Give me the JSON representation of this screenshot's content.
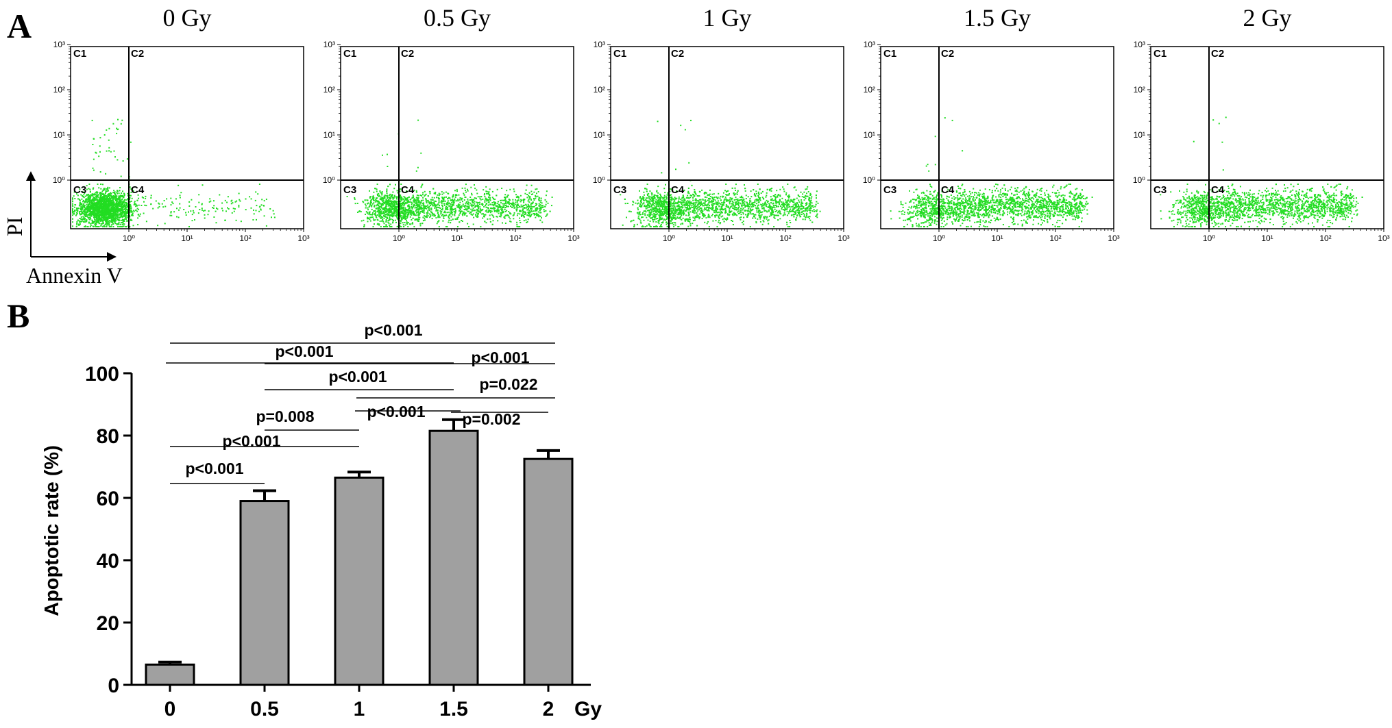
{
  "panel_a": {
    "label": "A",
    "y_marker": "PI",
    "x_marker": "Annexin V",
    "quadrant_labels": [
      "C1",
      "C2",
      "C3",
      "C4"
    ],
    "x_ticks": [
      "10⁰",
      "10¹",
      "10²",
      "10³"
    ],
    "y_ticks": [
      "10⁰",
      "10¹",
      "10²",
      "10³"
    ],
    "plots": [
      {
        "title": "0 Gy",
        "dose": 0
      },
      {
        "title": "0.5 Gy",
        "dose": 0.5
      },
      {
        "title": "1 Gy",
        "dose": 1
      },
      {
        "title": "1.5 Gy",
        "dose": 1.5
      },
      {
        "title": "2 Gy",
        "dose": 2
      }
    ],
    "dot_color": "#22dd22"
  },
  "panel_b": {
    "label": "B",
    "unit_label": "Gy",
    "bar_color": "#a0a0a0",
    "comparisons": [
      {
        "from": "0",
        "to": "0.5",
        "text": "p<0.001"
      },
      {
        "from": "0",
        "to": "1",
        "text": "p<0.001"
      },
      {
        "from": "0.5",
        "to": "1",
        "text": "p=0.008"
      },
      {
        "from": "1",
        "to": "1.5",
        "text": "p<0.001"
      },
      {
        "from": "1.5",
        "to": "2",
        "text": "p=0.002"
      },
      {
        "from": "1",
        "to": "2",
        "text": "p=0.022"
      },
      {
        "from": "0.5",
        "to": "1.5",
        "text": "p<0.001"
      },
      {
        "from": "0.5",
        "to": "2",
        "text": "p<0.001"
      },
      {
        "from": "0",
        "to": "1.5",
        "text": "p<0.001"
      },
      {
        "from": "0",
        "to": "2",
        "text": "p<0.001"
      }
    ]
  },
  "chart_data": [
    {
      "type": "scatter",
      "title": "",
      "subplot_titles": [
        "0 Gy",
        "0.5 Gy",
        "1 Gy",
        "1.5 Gy",
        "2 Gy"
      ],
      "xlabel": "Annexin V",
      "ylabel": "PI",
      "xscale": "log",
      "yscale": "log",
      "quadrant_gate": {
        "x": 1,
        "y": 1
      },
      "quadrants": [
        "C1",
        "C2",
        "C3",
        "C4"
      ],
      "note": "Flow cytometry dot plots; individual events not enumerable"
    },
    {
      "type": "bar",
      "title": "",
      "categories": [
        "0",
        "0.5",
        "1",
        "1.5",
        "2"
      ],
      "values": [
        6.5,
        59,
        66.5,
        81.5,
        72.5
      ],
      "errors": [
        0.8,
        3.3,
        1.8,
        3.6,
        2.7
      ],
      "xlabel": "Gy",
      "ylabel": "Apoptotic rate (%)",
      "ylim": [
        0,
        100
      ],
      "yticks": [
        0,
        20,
        40,
        60,
        80,
        100
      ],
      "grid": false
    }
  ]
}
